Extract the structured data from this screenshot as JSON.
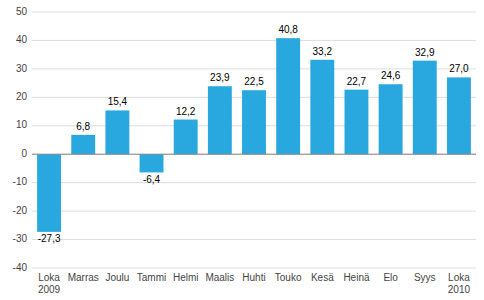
{
  "chart_data": {
    "type": "bar",
    "categories": [
      "Loka\n2009",
      "Marras",
      "Joulu",
      "Tammi",
      "Helmi",
      "Maalis",
      "Huhti",
      "Touko",
      "Kesä",
      "Heinä",
      "Elo",
      "Syys",
      "Loka\n2010"
    ],
    "values": [
      -27.3,
      6.8,
      15.4,
      -6.4,
      12.2,
      23.9,
      22.5,
      40.8,
      33.2,
      22.7,
      24.6,
      32.9,
      27.0
    ],
    "value_labels": [
      "-27,3",
      "6,8",
      "15,4",
      "-6,4",
      "12,2",
      "23,9",
      "22,5",
      "40,8",
      "33,2",
      "22,7",
      "24,6",
      "32,9",
      "27,0"
    ],
    "data_labels": true,
    "color": "#29a8e0",
    "ylim": [
      -40,
      50
    ],
    "yticks": [
      -40,
      -30,
      -20,
      -10,
      0,
      10,
      20,
      30,
      40,
      50
    ],
    "grid": true
  }
}
